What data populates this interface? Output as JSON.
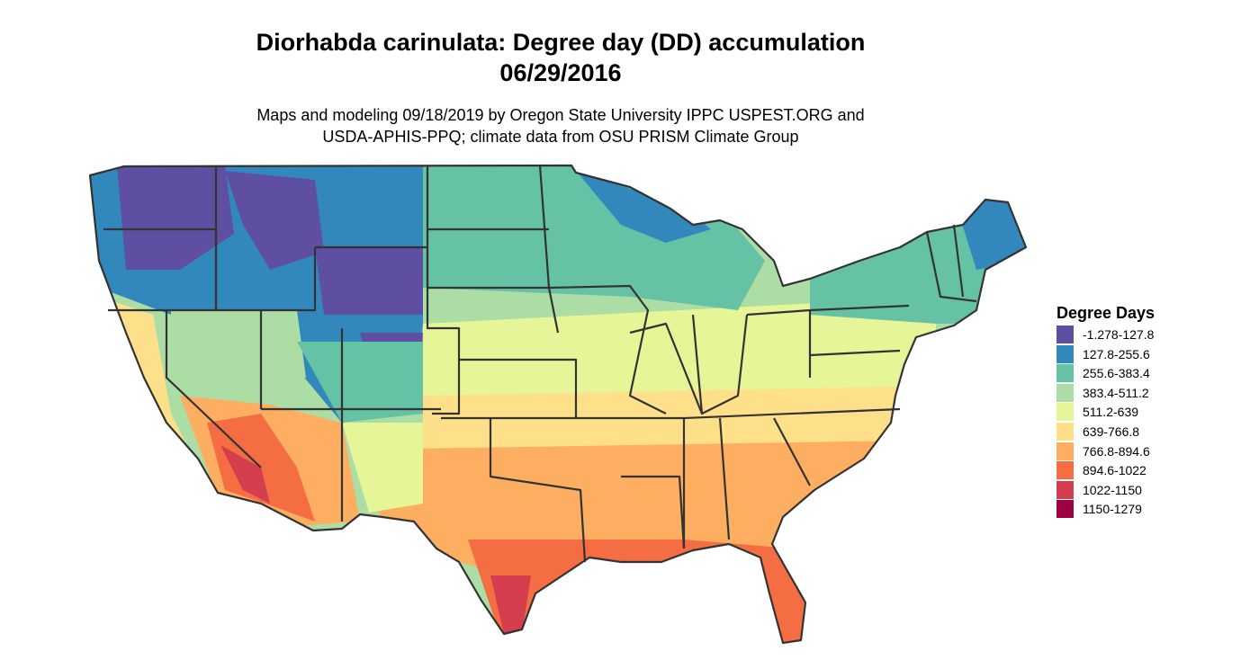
{
  "header": {
    "title_line1": "Diorhabda carinulata: Degree day (DD) accumulation",
    "title_line2": "06/29/2016",
    "subtitle_line1": "Maps and modeling 09/18/2019 by Oregon State University IPPC USPEST.ORG and",
    "subtitle_line2": "USDA-APHIS-PPQ; climate data from OSU PRISM Climate Group"
  },
  "legend": {
    "title": "Degree Days",
    "items": [
      {
        "label": "-1.278-127.8",
        "color": "#5e4fa2"
      },
      {
        "label": "127.8-255.6",
        "color": "#3288bd"
      },
      {
        "label": "255.6-383.4",
        "color": "#66c2a5"
      },
      {
        "label": "383.4-511.2",
        "color": "#abdda4"
      },
      {
        "label": "511.2-639",
        "color": "#e6f598"
      },
      {
        "label": "639-766.8",
        "color": "#fee08b"
      },
      {
        "label": "766.8-894.6",
        "color": "#fdae61"
      },
      {
        "label": "894.6-1022",
        "color": "#f46d43"
      },
      {
        "label": "1022-1150",
        "color": "#d53e4f"
      },
      {
        "label": "1150-1279",
        "color": "#9e0142"
      }
    ]
  }
}
